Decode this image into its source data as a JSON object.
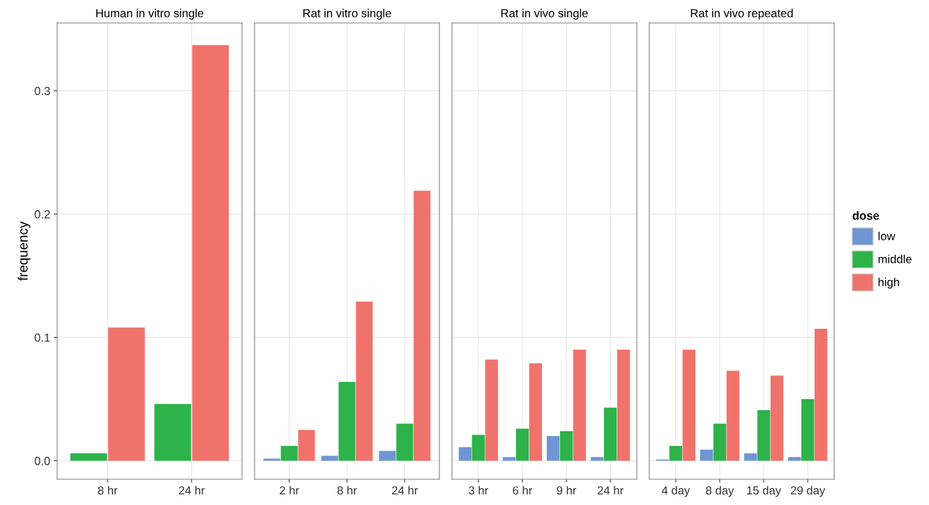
{
  "chart_data": [
    {
      "type": "bar",
      "title": "Human in vitro single",
      "ylabel": "frequency",
      "categories": [
        "8 hr",
        "24 hr"
      ],
      "series": [
        {
          "color": "#2db34a",
          "values": [
            0.006,
            0.046
          ]
        },
        {
          "color": "#f0736b",
          "values": [
            0.108,
            0.337
          ]
        }
      ],
      "ylim": [
        -0.015,
        0.355
      ],
      "yticks": [
        {
          "value": 0,
          "label": "0.0"
        },
        0.1,
        0.2,
        0.3
      ],
      "grid": true
    },
    {
      "type": "bar",
      "title": "Rat in vitro single",
      "categories": [
        "2 hr",
        "8 hr",
        "24 hr"
      ],
      "series": [
        {
          "color": "#6f96d4",
          "values": [
            0.0017,
            0.004,
            0.008
          ]
        },
        {
          "color": "#2db34a",
          "values": [
            0.012,
            0.064,
            0.03
          ]
        },
        {
          "color": "#f0736b",
          "values": [
            0.025,
            0.129,
            0.219
          ]
        }
      ],
      "ylim": [
        -0.015,
        0.355
      ],
      "yticks": [
        0,
        0.1,
        0.2,
        0.3
      ],
      "tick_labels": "x",
      "grid": true
    },
    {
      "type": "bar",
      "title": "Rat in vivo single",
      "categories": [
        "3 hr",
        "6 hr",
        "9 hr",
        "24 hr"
      ],
      "series": [
        {
          "color": "#6f96d4",
          "values": [
            0.011,
            0.003,
            0.02,
            0.003
          ]
        },
        {
          "color": "#2db34a",
          "values": [
            0.021,
            0.026,
            0.024,
            0.043
          ]
        },
        {
          "color": "#f0736b",
          "values": [
            0.082,
            0.079,
            0.09,
            0.09
          ]
        }
      ],
      "ylim": [
        -0.015,
        0.355
      ],
      "yticks": [
        0,
        0.1,
        0.2,
        0.3
      ],
      "tick_labels": "x",
      "grid": true
    },
    {
      "type": "bar",
      "title": "Rat in vivo repeated",
      "categories": [
        "4 day",
        "8 day",
        "15 day",
        "29 day"
      ],
      "series": [
        {
          "name": "low",
          "color": "#6f96d4",
          "values": [
            0.001,
            0.009,
            0.006,
            0.003
          ]
        },
        {
          "name": "middle",
          "color": "#2db34a",
          "values": [
            0.012,
            0.03,
            0.041,
            0.05
          ]
        },
        {
          "name": "high",
          "color": "#f0736b",
          "values": [
            0.09,
            0.073,
            0.069,
            0.107
          ]
        }
      ],
      "ylim": [
        -0.015,
        0.355
      ],
      "yticks": [
        0,
        0.1,
        0.2,
        0.3
      ],
      "tick_labels": "x",
      "grid": true,
      "legend": "right",
      "legend_title": "dose"
    }
  ]
}
